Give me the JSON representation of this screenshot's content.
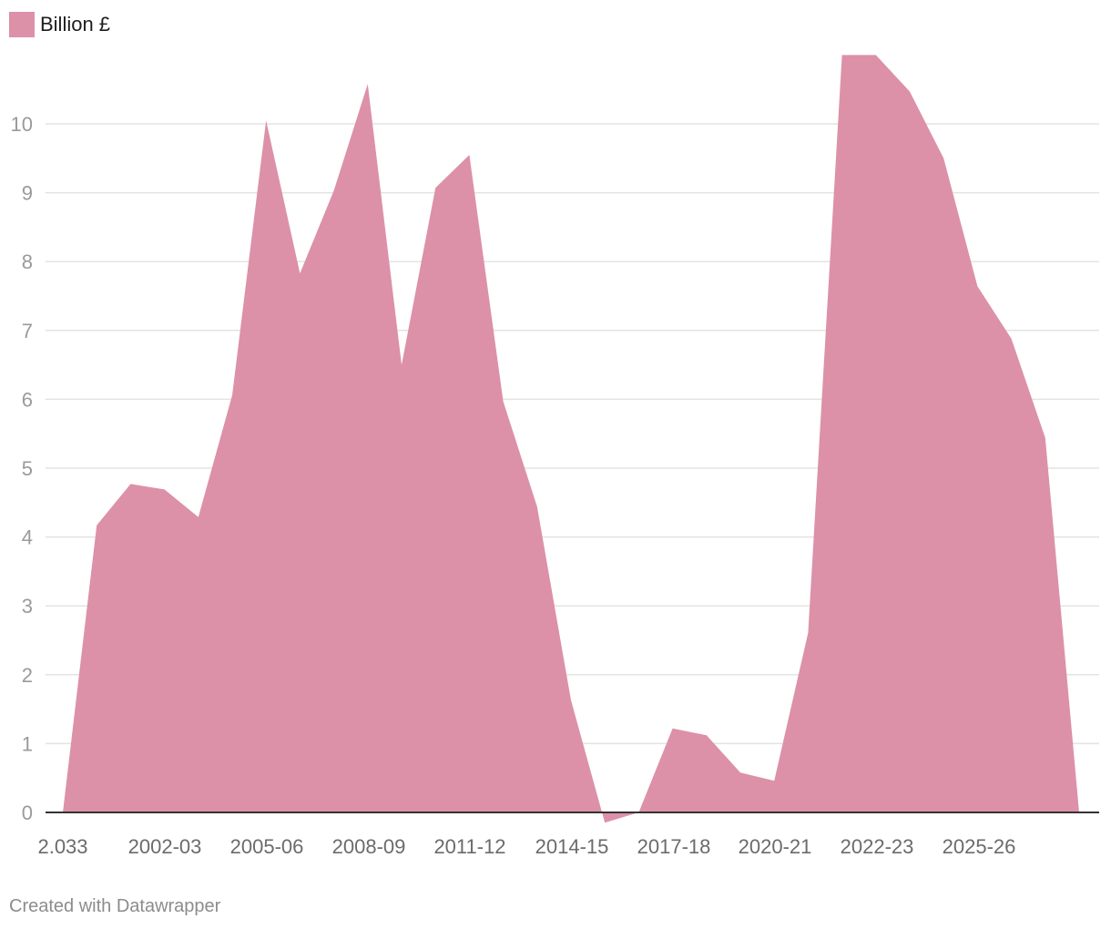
{
  "chart_data": {
    "type": "area",
    "series": [
      {
        "name": "Billion £",
        "color": "#dc91a8",
        "values": [
          0,
          4.17,
          4.77,
          4.69,
          4.29,
          6.06,
          10.05,
          7.83,
          9.03,
          10.58,
          6.5,
          9.07,
          9.55,
          5.97,
          4.44,
          1.63,
          -0.15,
          0.0,
          1.22,
          1.12,
          0.58,
          0.46,
          2.61,
          11.0,
          11.0,
          10.47,
          9.5,
          7.64,
          6.88,
          5.44,
          0
        ]
      }
    ],
    "x_tick_labels": [
      "2.033",
      "2002-03",
      "2005-06",
      "2008-09",
      "2011-12",
      "2014-15",
      "2017-18",
      "2020-21",
      "2022-23",
      "2025-26"
    ],
    "y_ticks": [
      0,
      1,
      2,
      3,
      4,
      5,
      6,
      7,
      8,
      9,
      10
    ],
    "ylim": [
      -0.2,
      11
    ],
    "grid": true,
    "legend_position": "top-left",
    "xlabel": "",
    "ylabel": ""
  },
  "legend": {
    "label": "Billion £",
    "color": "#dc91a8"
  },
  "footer": {
    "credit": "Created with Datawrapper"
  }
}
